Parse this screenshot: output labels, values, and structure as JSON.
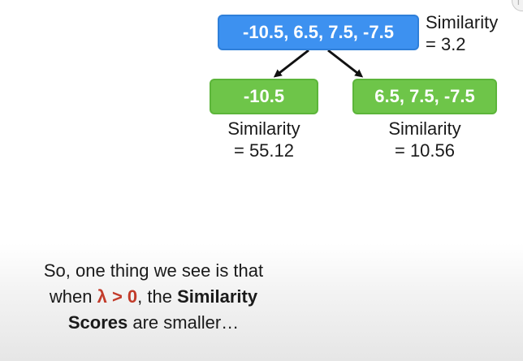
{
  "tree": {
    "root": {
      "values": "-10.5, 6.5, 7.5, -7.5",
      "similarity_label": "Similarity",
      "similarity_value": "= 3.2"
    },
    "left": {
      "values": "-10.5",
      "similarity_label": "Similarity",
      "similarity_value": "= 55.12"
    },
    "right": {
      "values": "6.5, 7.5, -7.5",
      "similarity_label": "Similarity",
      "similarity_value": "= 10.56"
    }
  },
  "caption": {
    "line1": "So, one thing we see is that",
    "line2_pre": "when ",
    "line2_lambda": "λ > 0",
    "line2_mid": ", the ",
    "line2_bold": "Similarity",
    "line3_bold": "Scores",
    "line3_post": " are smaller…"
  },
  "corner_icon": "info-icon",
  "corner_glyph": "i",
  "colors": {
    "root_node": "#3d91f0",
    "leaf_node": "#6ec549",
    "lambda": "#c23b2a"
  }
}
